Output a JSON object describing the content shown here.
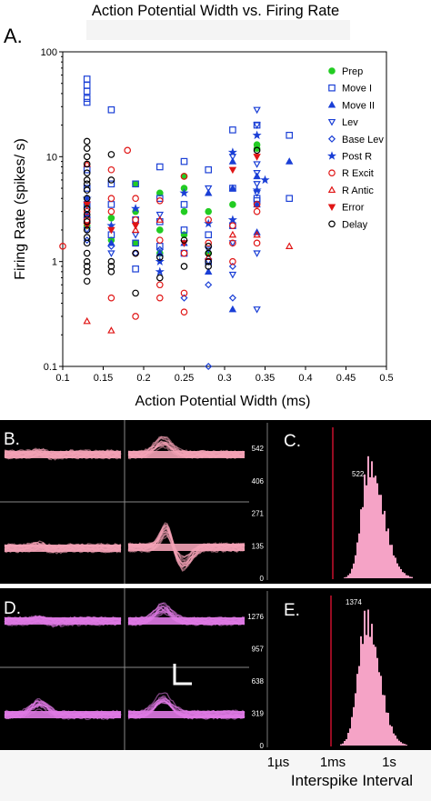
{
  "panel_a": {
    "letter": "A.",
    "title": "Action Potential Width vs. Firing Rate",
    "x_ticks": [
      "0.1",
      "0.15",
      "0.2",
      "0.25",
      "0.3",
      "0.35",
      "0.4",
      "0.45",
      "0.5"
    ],
    "y_ticks": [
      "0.1",
      "1",
      "10",
      "100"
    ]
  },
  "panel_b": {
    "letter": "B."
  },
  "panel_c": {
    "letter": "C.",
    "peak_label": "522",
    "y_ticks": [
      "542",
      "406",
      "271",
      "135",
      "0"
    ]
  },
  "panel_d": {
    "letter": "D."
  },
  "panel_e": {
    "letter": "E.",
    "peak_label": "1374",
    "y_ticks": [
      "1276",
      "957",
      "638",
      "319",
      "0"
    ]
  },
  "isi_axis": {
    "ticks": [
      "1µs",
      "1ms",
      "1s"
    ],
    "label": "Interspike Interval"
  },
  "colors": {
    "green": "#22cc22",
    "blue": "#1a3fd6",
    "red": "#e01515",
    "black": "#000000",
    "pink_wave": "#f5a3b7",
    "violet_wave": "#e07ae6",
    "histogram": "#f5a3c6",
    "marker_line": "#c8102e"
  },
  "chart_data": [
    {
      "type": "scatter",
      "title": "Action Potential Width vs. Firing Rate",
      "xlabel": "Action Potential Width (ms)",
      "ylabel": "Firing Rate (spikes/ s)",
      "xlim": [
        0.1,
        0.5
      ],
      "ylim": [
        0.1,
        100
      ],
      "y_scale": "log",
      "legend_position": "right",
      "series": [
        {
          "name": "Prep",
          "marker": "filled-circle",
          "color": "#22cc22",
          "points": [
            [
              0.13,
              2.2
            ],
            [
              0.13,
              3.5
            ],
            [
              0.16,
              2.6
            ],
            [
              0.16,
              1.6
            ],
            [
              0.19,
              5.5
            ],
            [
              0.19,
              3.0
            ],
            [
              0.19,
              1.5
            ],
            [
              0.22,
              4.5
            ],
            [
              0.22,
              2.0
            ],
            [
              0.22,
              1.2
            ],
            [
              0.25,
              5.0
            ],
            [
              0.25,
              3.0
            ],
            [
              0.25,
              1.8
            ],
            [
              0.25,
              6.5
            ],
            [
              0.28,
              3.0
            ],
            [
              0.28,
              1.2
            ],
            [
              0.31,
              3.5
            ],
            [
              0.34,
              13.0
            ],
            [
              0.34,
              12.0
            ]
          ]
        },
        {
          "name": "Move I",
          "marker": "square",
          "color": "#1a3fd6",
          "points": [
            [
              0.13,
              55
            ],
            [
              0.13,
              48
            ],
            [
              0.13,
              42
            ],
            [
              0.13,
              36
            ],
            [
              0.13,
              33
            ],
            [
              0.13,
              7.5
            ],
            [
              0.13,
              5.0
            ],
            [
              0.13,
              3.5
            ],
            [
              0.13,
              2.5
            ],
            [
              0.16,
              28
            ],
            [
              0.16,
              5.5
            ],
            [
              0.16,
              3.5
            ],
            [
              0.16,
              1.8
            ],
            [
              0.19,
              5.5
            ],
            [
              0.19,
              2.5
            ],
            [
              0.19,
              1.5
            ],
            [
              0.19,
              0.85
            ],
            [
              0.22,
              8.0
            ],
            [
              0.22,
              4.0
            ],
            [
              0.22,
              2.4
            ],
            [
              0.22,
              1.4
            ],
            [
              0.25,
              9.0
            ],
            [
              0.25,
              3.5
            ],
            [
              0.25,
              2.0
            ],
            [
              0.25,
              1.2
            ],
            [
              0.28,
              7.5
            ],
            [
              0.28,
              1.8
            ],
            [
              0.28,
              1.0
            ],
            [
              0.31,
              18
            ],
            [
              0.31,
              5.0
            ],
            [
              0.31,
              2.2
            ],
            [
              0.34,
              20
            ],
            [
              0.34,
              4.0
            ],
            [
              0.34,
              3.8
            ],
            [
              0.38,
              16
            ],
            [
              0.38,
              4.0
            ]
          ]
        },
        {
          "name": "Move II",
          "marker": "triangle-up",
          "color": "#1a3fd6",
          "points": [
            [
              0.13,
              2.8
            ],
            [
              0.16,
              1.5
            ],
            [
              0.22,
              1.2
            ],
            [
              0.25,
              1.5
            ],
            [
              0.28,
              4.5
            ],
            [
              0.28,
              0.8
            ],
            [
              0.31,
              0.35
            ],
            [
              0.31,
              9.0
            ],
            [
              0.31,
              5.0
            ],
            [
              0.34,
              6.5
            ],
            [
              0.34,
              3.5
            ],
            [
              0.34,
              1.9
            ],
            [
              0.38,
              9.0
            ]
          ]
        },
        {
          "name": "Lev",
          "marker": "triangle-down",
          "color": "#1a3fd6",
          "points": [
            [
              0.13,
              2.0
            ],
            [
              0.16,
              1.2
            ],
            [
              0.19,
              1.8
            ],
            [
              0.22,
              2.8
            ],
            [
              0.25,
              1.5
            ],
            [
              0.28,
              5.0
            ],
            [
              0.28,
              1.3
            ],
            [
              0.28,
              1.0
            ],
            [
              0.31,
              10
            ],
            [
              0.31,
              1.5
            ],
            [
              0.31,
              0.75
            ],
            [
              0.34,
              28
            ],
            [
              0.34,
              20
            ],
            [
              0.34,
              8.5
            ],
            [
              0.34,
              7.0
            ],
            [
              0.34,
              5.5
            ],
            [
              0.34,
              4.5
            ],
            [
              0.34,
              1.2
            ],
            [
              0.34,
              0.35
            ]
          ]
        },
        {
          "name": "Base Lev",
          "marker": "diamond",
          "color": "#1a3fd6",
          "points": [
            [
              0.13,
              1.6
            ],
            [
              0.16,
              1.4
            ],
            [
              0.19,
              1.2
            ],
            [
              0.22,
              1.3
            ],
            [
              0.25,
              0.45
            ],
            [
              0.28,
              0.1
            ],
            [
              0.28,
              0.6
            ],
            [
              0.31,
              0.45
            ],
            [
              0.31,
              0.9
            ]
          ]
        },
        {
          "name": "Post R",
          "marker": "star",
          "color": "#1a3fd6",
          "points": [
            [
              0.13,
              4.0
            ],
            [
              0.16,
              2.2
            ],
            [
              0.19,
              3.2
            ],
            [
              0.22,
              0.8
            ],
            [
              0.22,
              1.0
            ],
            [
              0.25,
              4.5
            ],
            [
              0.28,
              2.3
            ],
            [
              0.31,
              11
            ],
            [
              0.31,
              2.5
            ],
            [
              0.34,
              16
            ],
            [
              0.34,
              4.8
            ],
            [
              0.35,
              6.0
            ]
          ]
        },
        {
          "name": "R Excit",
          "marker": "circle",
          "color": "#e01515",
          "points": [
            [
              0.1,
              1.4
            ],
            [
              0.13,
              3.0
            ],
            [
              0.13,
              2.5
            ],
            [
              0.16,
              7.5
            ],
            [
              0.16,
              4.0
            ],
            [
              0.16,
              3.0
            ],
            [
              0.16,
              0.45
            ],
            [
              0.18,
              11.5
            ],
            [
              0.19,
              4.0
            ],
            [
              0.19,
              2.5
            ],
            [
              0.19,
              1.2
            ],
            [
              0.19,
              0.3
            ],
            [
              0.22,
              0.6
            ],
            [
              0.22,
              0.45
            ],
            [
              0.22,
              1.6
            ],
            [
              0.22,
              3.8
            ],
            [
              0.25,
              0.5
            ],
            [
              0.25,
              0.33
            ],
            [
              0.25,
              1.2
            ],
            [
              0.25,
              6.5
            ],
            [
              0.28,
              2.5
            ],
            [
              0.28,
              1.5
            ],
            [
              0.31,
              2.2
            ],
            [
              0.31,
              1.5
            ],
            [
              0.31,
              1.0
            ],
            [
              0.34,
              3.5
            ],
            [
              0.34,
              3.0
            ],
            [
              0.34,
              1.5
            ]
          ]
        },
        {
          "name": "R Antic",
          "marker": "triangle-up-open",
          "color": "#e01515",
          "points": [
            [
              0.13,
              0.27
            ],
            [
              0.13,
              8.5
            ],
            [
              0.16,
              0.22
            ],
            [
              0.19,
              2.0
            ],
            [
              0.22,
              2.5
            ],
            [
              0.28,
              1.1
            ],
            [
              0.31,
              1.8
            ],
            [
              0.34,
              1.8
            ],
            [
              0.38,
              1.4
            ]
          ]
        },
        {
          "name": "Error",
          "marker": "triangle-down-filled",
          "color": "#e01515",
          "points": [
            [
              0.13,
              3.5
            ],
            [
              0.13,
              2.2
            ],
            [
              0.16,
              2.0
            ],
            [
              0.19,
              2.2
            ],
            [
              0.25,
              1.5
            ],
            [
              0.31,
              7.5
            ],
            [
              0.34,
              10
            ]
          ]
        },
        {
          "name": "Delay",
          "marker": "circle",
          "color": "#000000",
          "points": [
            [
              0.13,
              14
            ],
            [
              0.13,
              12
            ],
            [
              0.13,
              10
            ],
            [
              0.13,
              8.5
            ],
            [
              0.13,
              7.0
            ],
            [
              0.13,
              6.0
            ],
            [
              0.13,
              5.5
            ],
            [
              0.13,
              4.8
            ],
            [
              0.13,
              4.0
            ],
            [
              0.13,
              3.2
            ],
            [
              0.13,
              2.8
            ],
            [
              0.13,
              2.4
            ],
            [
              0.13,
              2.0
            ],
            [
              0.13,
              1.7
            ],
            [
              0.13,
              1.5
            ],
            [
              0.13,
              1.2
            ],
            [
              0.13,
              1.0
            ],
            [
              0.13,
              0.9
            ],
            [
              0.13,
              0.8
            ],
            [
              0.13,
              0.65
            ],
            [
              0.16,
              10.5
            ],
            [
              0.16,
              6.0
            ],
            [
              0.16,
              1.0
            ],
            [
              0.16,
              0.9
            ],
            [
              0.16,
              0.8
            ],
            [
              0.19,
              0.5
            ],
            [
              0.19,
              1.2
            ],
            [
              0.22,
              1.1
            ],
            [
              0.22,
              0.7
            ],
            [
              0.25,
              1.6
            ],
            [
              0.25,
              0.9
            ],
            [
              0.28,
              1.4
            ],
            [
              0.28,
              1.2
            ],
            [
              0.28,
              1.0
            ],
            [
              0.28,
              0.9
            ],
            [
              0.34,
              11.5
            ]
          ]
        }
      ]
    },
    {
      "type": "bar",
      "panel": "C",
      "x_scale": "log",
      "peak_count": 522,
      "y_ticks": [
        542,
        406,
        271,
        135,
        0
      ]
    },
    {
      "type": "bar",
      "panel": "E",
      "x_scale": "log",
      "peak_count": 1374,
      "y_ticks": [
        1276,
        957,
        638,
        319,
        0
      ]
    }
  ]
}
